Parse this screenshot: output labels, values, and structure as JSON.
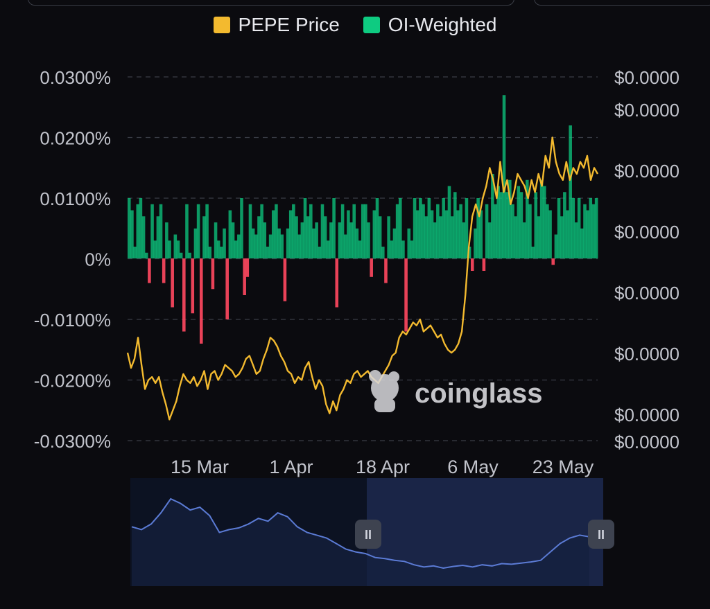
{
  "chart_data": {
    "type": "bar",
    "title": "",
    "legend": {
      "placement": "top-center",
      "items": [
        {
          "name": "PEPE Price",
          "color": "#f3ba2f"
        },
        {
          "name": "OI-Weighted",
          "color": "#0ecb81"
        }
      ]
    },
    "x_ticks": [
      "15 Mar",
      "1 Apr",
      "18 Apr",
      "6 May",
      "23 May"
    ],
    "y_left_ticks": [
      "0.0300%",
      "0.0200%",
      "0.0100%",
      "0%",
      "-0.0100%",
      "-0.0200%",
      "-0.0300%"
    ],
    "y_left_range": [
      -0.03,
      0.03
    ],
    "y_right_ticks": [
      "$0.0000",
      "$0.0000",
      "$0.0000",
      "$0.0000",
      "$0.0000",
      "$0.0000",
      "$0.0000",
      "$0.0000"
    ],
    "grid": true,
    "colors": {
      "positive": "#0ecb81",
      "negative": "#f6465d",
      "price": "#f3ba2f",
      "navigator": "#5b7bd5"
    },
    "series": [
      {
        "name": "OI-Weighted",
        "axis": "left",
        "unit": "%",
        "values": [
          0.01,
          0.008,
          0.002,
          0.009,
          0.01,
          0.007,
          0.001,
          -0.004,
          0.009,
          0.003,
          0.007,
          0.009,
          -0.004,
          0.006,
          0.003,
          -0.008,
          0.004,
          0.003,
          0.001,
          -0.012,
          0.009,
          0.001,
          -0.009,
          0.005,
          0.009,
          -0.014,
          0.007,
          0.009,
          0.002,
          -0.005,
          0.006,
          0.003,
          0.002,
          0.005,
          -0.01,
          0.008,
          0.006,
          0.003,
          0.004,
          0.01,
          -0.006,
          -0.003,
          0.009,
          0.005,
          0.004,
          0.007,
          0.009,
          0.006,
          0.002,
          0.004,
          0.008,
          0.009,
          0.005,
          0.004,
          -0.007,
          0.005,
          0.008,
          0.009,
          0.007,
          0.004,
          0.006,
          0.01,
          0.007,
          0.009,
          0.005,
          0.006,
          0.002,
          0.009,
          0.007,
          0.003,
          0.006,
          0.01,
          -0.008,
          0.006,
          0.009,
          0.004,
          0.008,
          0.006,
          0.009,
          0.005,
          0.003,
          0.009,
          0.009,
          0.006,
          -0.003,
          0.008,
          0.01,
          0.007,
          0.002,
          -0.004,
          0.007,
          0.003,
          0.005,
          0.009,
          0.01,
          0.003,
          -0.012,
          0.005,
          0.003,
          0.01,
          0.008,
          0.01,
          0.009,
          0.007,
          0.01,
          0.008,
          0.006,
          0.009,
          0.007,
          0.01,
          0.008,
          0.012,
          0.007,
          0.011,
          0.008,
          0.009,
          0.006,
          0.01,
          0.002,
          -0.002,
          0.005,
          0.01,
          0.008,
          -0.002,
          0.009,
          0.006,
          0.014,
          0.009,
          0.012,
          0.011,
          0.027,
          0.011,
          0.013,
          0.009,
          0.007,
          0.012,
          0.011,
          0.006,
          0.013,
          0.009,
          0.002,
          0.011,
          0.007,
          0.013,
          0.012,
          0.009,
          0.008,
          -0.001,
          0.004,
          0.01,
          0.007,
          0.011,
          0.008,
          0.022,
          0.01,
          0.006,
          0.01,
          0.005,
          0.009,
          0.008,
          0.01,
          0.009,
          0.01
        ]
      },
      {
        "name": "PEPE Price",
        "axis": "right",
        "unit": "$",
        "values": [
          -0.0155,
          -0.018,
          -0.0165,
          -0.013,
          -0.0175,
          -0.0215,
          -0.02,
          -0.0195,
          -0.0205,
          -0.0195,
          -0.022,
          -0.024,
          -0.0265,
          -0.025,
          -0.0235,
          -0.021,
          -0.019,
          -0.02,
          -0.0205,
          -0.0195,
          -0.021,
          -0.02,
          -0.0185,
          -0.0215,
          -0.019,
          -0.0185,
          -0.02,
          -0.019,
          -0.0175,
          -0.018,
          -0.0185,
          -0.0195,
          -0.019,
          -0.018,
          -0.0165,
          -0.016,
          -0.0175,
          -0.019,
          -0.0185,
          -0.0165,
          -0.015,
          -0.013,
          -0.0135,
          -0.0145,
          -0.016,
          -0.017,
          -0.0185,
          -0.019,
          -0.0205,
          -0.0195,
          -0.02,
          -0.018,
          -0.017,
          -0.0195,
          -0.0215,
          -0.02,
          -0.021,
          -0.024,
          -0.0255,
          -0.0235,
          -0.025,
          -0.0225,
          -0.0215,
          -0.02,
          -0.0205,
          -0.019,
          -0.0185,
          -0.0195,
          -0.019,
          -0.0185,
          -0.0195,
          -0.02,
          -0.0205,
          -0.0195,
          -0.0185,
          -0.0175,
          -0.016,
          -0.0155,
          -0.013,
          -0.012,
          -0.0125,
          -0.0115,
          -0.0105,
          -0.011,
          -0.01,
          -0.012,
          -0.0115,
          -0.011,
          -0.012,
          -0.013,
          -0.0125,
          -0.014,
          -0.015,
          -0.0155,
          -0.015,
          -0.014,
          -0.012,
          -0.006,
          0.002,
          0.007,
          0.009,
          0.007,
          0.01,
          0.012,
          0.015,
          0.013,
          0.01,
          0.016,
          0.011,
          0.013,
          0.009,
          0.011,
          0.014,
          0.013,
          0.012,
          0.01,
          0.013,
          0.011,
          0.014,
          0.012,
          0.017,
          0.015,
          0.02,
          0.016,
          0.014,
          0.013,
          0.016,
          0.013,
          0.015,
          0.014,
          0.016,
          0.015,
          0.017,
          0.013,
          0.015,
          0.014
        ]
      }
    ],
    "navigator": {
      "selected_range": [
        0.5,
        1.0
      ],
      "values": [
        0.3,
        0.25,
        0.35,
        0.55,
        0.8,
        0.72,
        0.6,
        0.65,
        0.5,
        0.2,
        0.25,
        0.28,
        0.35,
        0.45,
        0.4,
        0.55,
        0.48,
        0.3,
        0.2,
        0.15,
        0.1,
        0.0,
        -0.1,
        -0.15,
        -0.18,
        -0.25,
        -0.27,
        -0.3,
        -0.32,
        -0.38,
        -0.42,
        -0.4,
        -0.44,
        -0.41,
        -0.39,
        -0.42,
        -0.38,
        -0.4,
        -0.36,
        -0.37,
        -0.35,
        -0.33,
        -0.3,
        -0.15,
        0.0,
        0.1,
        0.15,
        0.12
      ]
    }
  },
  "watermark": {
    "text": "coinglass"
  },
  "navigator_handles": {
    "left_label": "II",
    "right_label": "II"
  }
}
